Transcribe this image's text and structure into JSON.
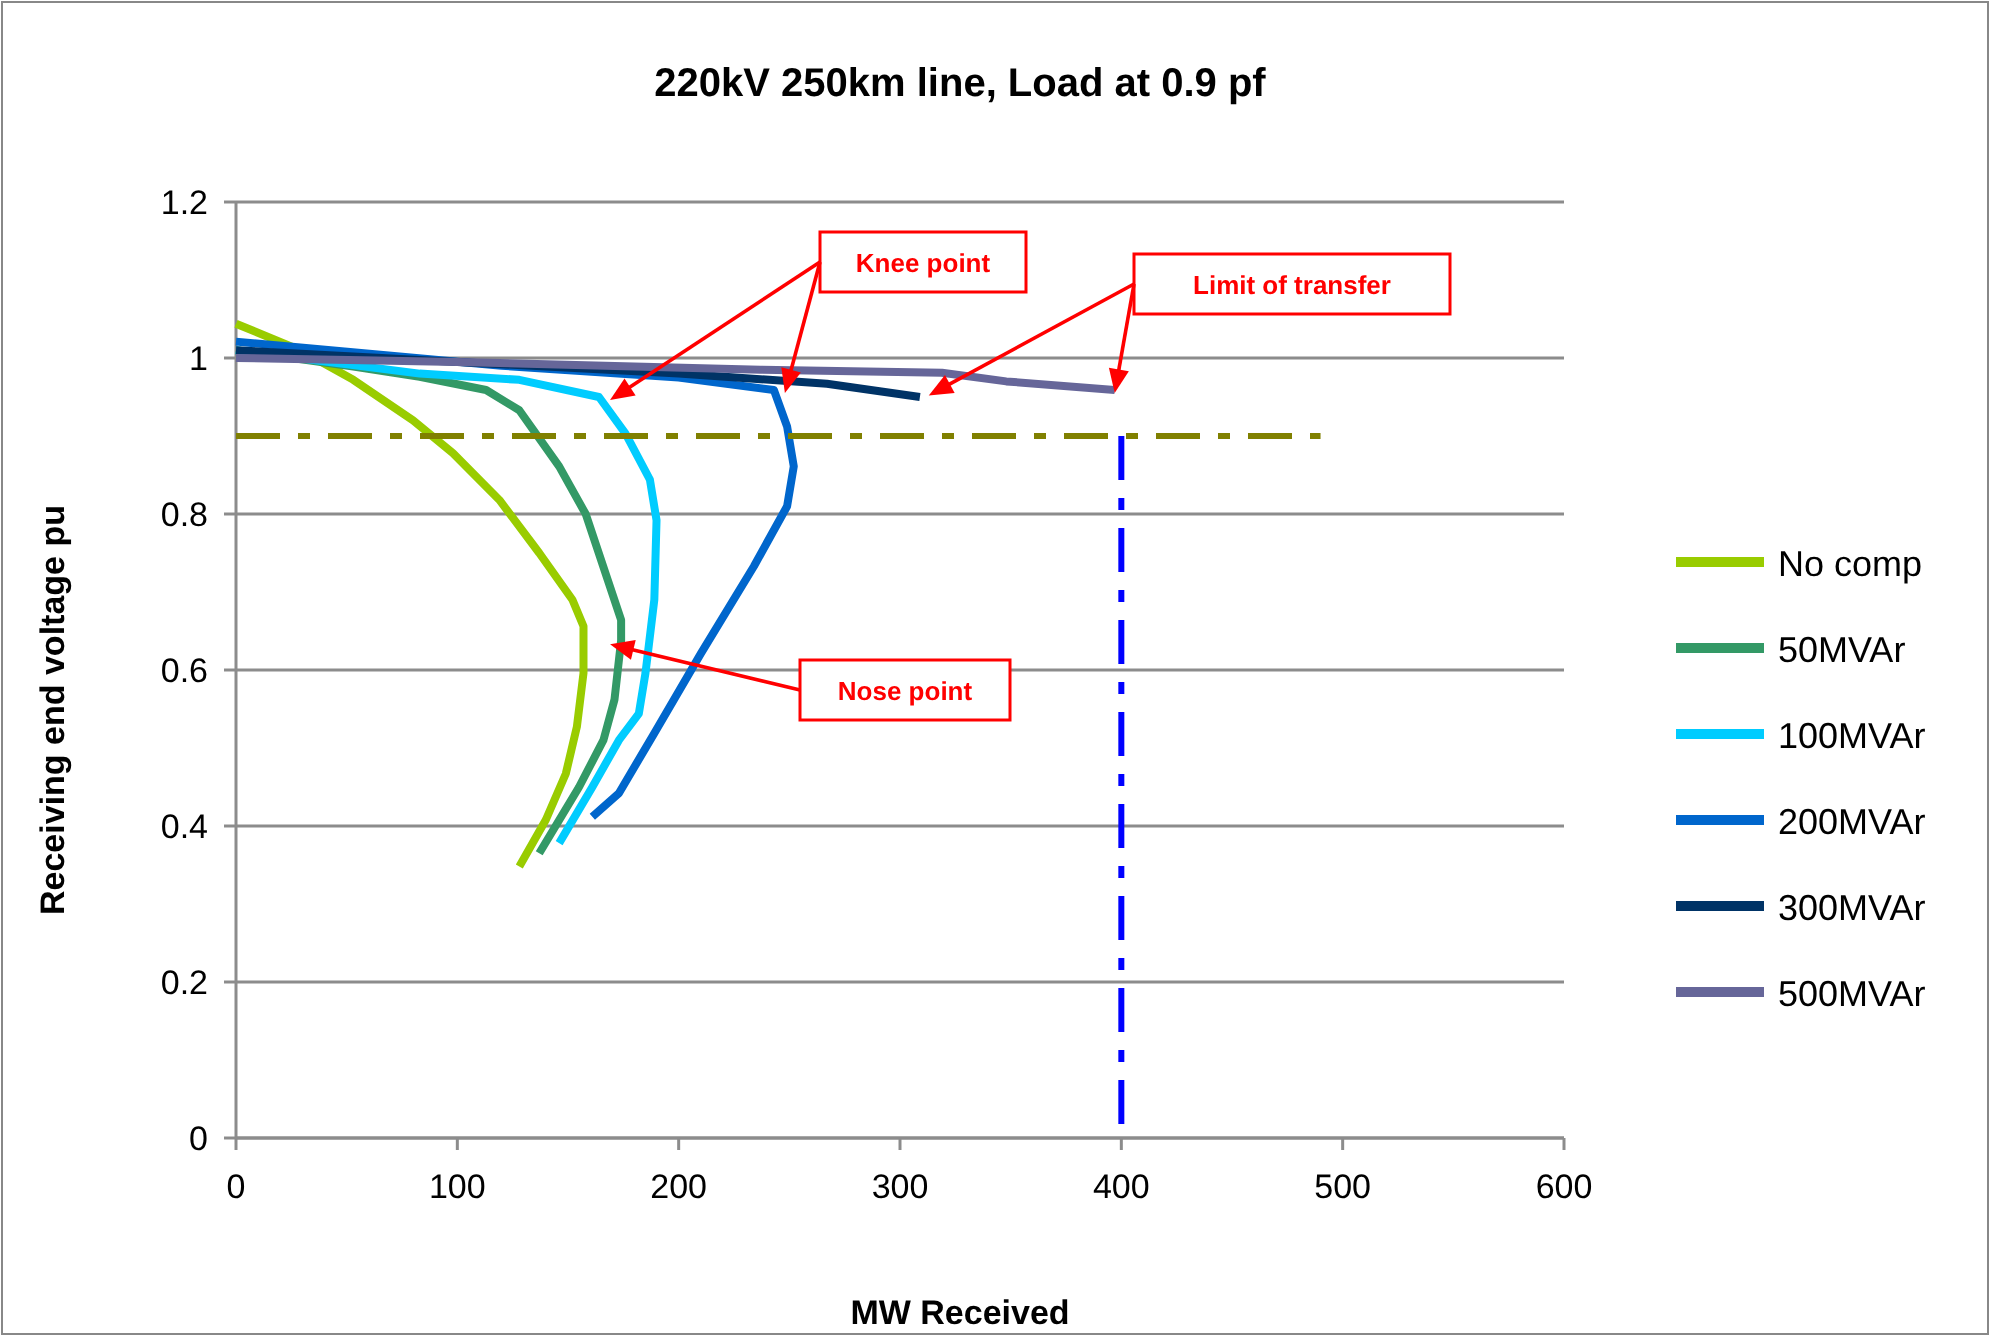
{
  "chart_data": {
    "type": "line",
    "title": "220kV 250km line, Load at 0.9 pf",
    "xlabel": "MW Received",
    "ylabel": "Receiving end voltage  pu",
    "xlim": [
      0,
      600
    ],
    "xticks": [
      0,
      100,
      200,
      300,
      400,
      500,
      600
    ],
    "ylim": [
      0,
      1.2
    ],
    "yticks": [
      0,
      0.2,
      0.4,
      0.6,
      0.8,
      1,
      1.2
    ],
    "grid": "y",
    "legend": "right",
    "marker": "none",
    "annotations": [
      "Knee point",
      "Limit of transfer",
      "Nose point"
    ],
    "series": [
      {
        "name": "No comp",
        "color": "#99cc00",
        "x": [
          0,
          29,
          53,
          80,
          98,
          119,
          137,
          152,
          157,
          157,
          154,
          149,
          140,
          128
        ],
        "values": [
          1.044,
          1.01,
          0.972,
          0.92,
          0.878,
          0.818,
          0.75,
          0.69,
          0.656,
          0.596,
          0.527,
          0.467,
          0.408,
          0.348
        ]
      },
      {
        "name": "50MVAr",
        "color": "#339966",
        "x": [
          0,
          53,
          83,
          113,
          128,
          146,
          158,
          168,
          174,
          174,
          171,
          166,
          155,
          137
        ],
        "values": [
          1.01,
          0.989,
          0.976,
          0.959,
          0.933,
          0.861,
          0.8,
          0.715,
          0.664,
          0.638,
          0.562,
          0.51,
          0.45,
          0.365
        ]
      },
      {
        "name": "100MVAr",
        "color": "#00ccff",
        "x": [
          0,
          83,
          128,
          164,
          176,
          187,
          190,
          189,
          185,
          182,
          173,
          161,
          146
        ],
        "values": [
          1.01,
          0.98,
          0.972,
          0.95,
          0.903,
          0.844,
          0.792,
          0.69,
          0.596,
          0.544,
          0.51,
          0.45,
          0.378
        ]
      },
      {
        "name": "200MVAr",
        "color": "#0066cc",
        "x": [
          0,
          120,
          200,
          243,
          249,
          252,
          249,
          234,
          210,
          189,
          173,
          161
        ],
        "values": [
          1.021,
          0.99,
          0.975,
          0.959,
          0.912,
          0.861,
          0.81,
          0.733,
          0.621,
          0.519,
          0.442,
          0.412
        ]
      },
      {
        "name": "300MVAr",
        "color": "#003366",
        "x": [
          0,
          100,
          200,
          267,
          309
        ],
        "values": [
          1.01,
          0.995,
          0.98,
          0.967,
          0.95
        ]
      },
      {
        "name": "500MVAr",
        "color": "#666699",
        "x": [
          0,
          100,
          237,
          319,
          348,
          397
        ],
        "values": [
          1.0,
          0.995,
          0.985,
          0.981,
          0.97,
          0.959
        ]
      },
      {
        "color": "#808000",
        "line_style": "dashed",
        "x": [
          0,
          490
        ],
        "values": [
          0.9,
          0.9
        ]
      },
      {
        "color": "#0000ff",
        "line_style": "dashed",
        "x": [
          400,
          400
        ],
        "values": [
          0.9,
          0
        ]
      }
    ]
  }
}
